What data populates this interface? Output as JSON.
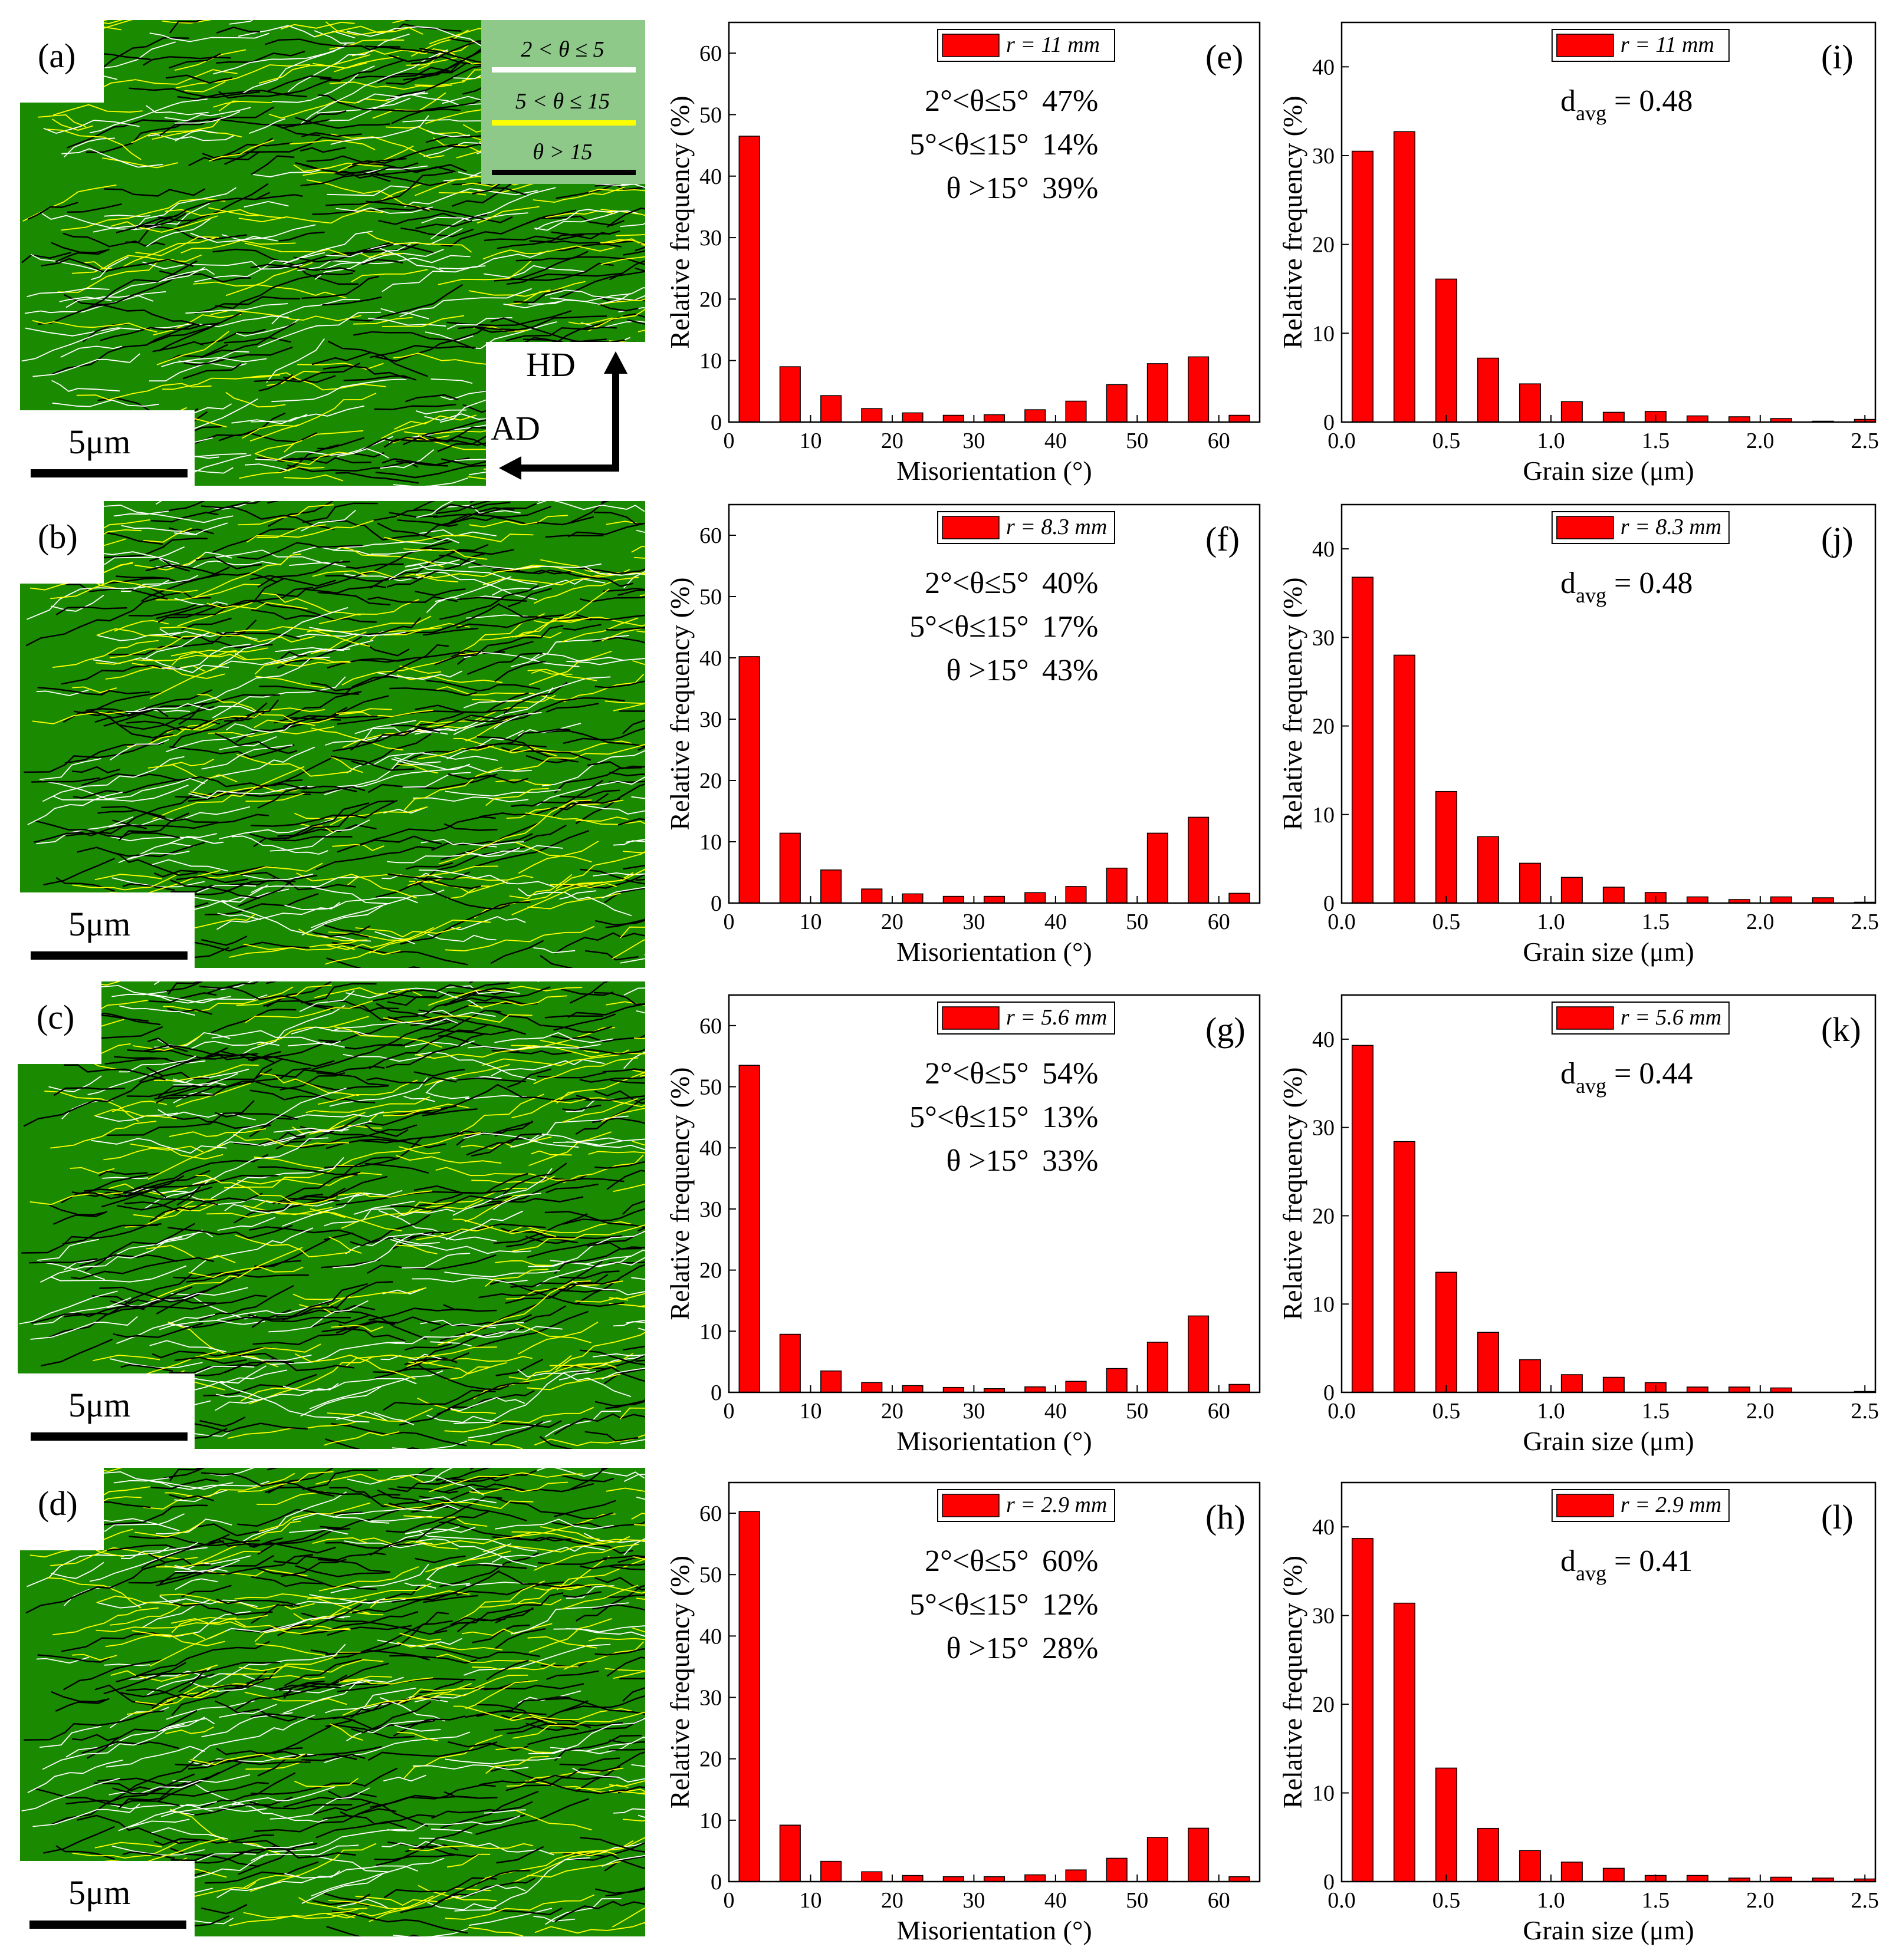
{
  "maps": [
    {
      "letter": "(a)",
      "scale": "5μm"
    },
    {
      "letter": "(b)",
      "scale": "5μm"
    },
    {
      "letter": "(c)",
      "scale": "5μm"
    },
    {
      "letter": "(d)",
      "scale": "5μm"
    }
  ],
  "boundary_legend": {
    "items": [
      {
        "label": "2 < θ ≤ 5",
        "color": "#ffffff"
      },
      {
        "label": "5 < θ ≤ 15",
        "color": "#ffff00"
      },
      {
        "label": "θ > 15",
        "color": "#000000"
      }
    ]
  },
  "directions": {
    "hd": "HD",
    "ad": "AD"
  },
  "colors": {
    "bar": "#ff0000",
    "map_bg": "#1a8a00",
    "legend_bg": "#8fc98a"
  },
  "chart_data": [
    {
      "id": "e",
      "type": "bar",
      "letter": "(e)",
      "legend": "r = 11 mm",
      "xlabel": "Misorientation (°)",
      "ylabel": "Relative frequency (%)",
      "xlim": [
        0,
        65
      ],
      "ylim": [
        0,
        65
      ],
      "xticks": [
        0,
        10,
        20,
        30,
        40,
        50,
        60
      ],
      "yticks": [
        0,
        10,
        20,
        30,
        40,
        50,
        60
      ],
      "x": [
        2.5,
        7.5,
        12.5,
        17.5,
        22.5,
        27.5,
        32.5,
        37.5,
        42.5,
        47.5,
        52.5,
        57.5,
        62.5
      ],
      "values": [
        46.5,
        9,
        4.3,
        2.2,
        1.5,
        1.1,
        1.2,
        2,
        3.4,
        6.1,
        9.5,
        10.6,
        1.1
      ],
      "stats": [
        {
          "range": "2°<θ≤5°",
          "pct": "47%"
        },
        {
          "range": "5°<θ≤15°",
          "pct": "14%"
        },
        {
          "range": "θ >15°",
          "pct": "39%"
        }
      ]
    },
    {
      "id": "i",
      "type": "bar",
      "letter": "(i)",
      "legend": "r = 11 mm",
      "xlabel": "Grain size (μm)",
      "ylabel": "Relative frequency (%)",
      "xlim": [
        0,
        2.55
      ],
      "ylim": [
        0,
        45
      ],
      "xticks": [
        "0.0",
        "0.5",
        "1.0",
        "1.5",
        "2.0",
        "2.5"
      ],
      "yticks": [
        0,
        10,
        20,
        30,
        40
      ],
      "x": [
        0.1,
        0.3,
        0.5,
        0.7,
        0.9,
        1.1,
        1.3,
        1.5,
        1.7,
        1.9,
        2.1,
        2.3,
        2.5
      ],
      "values": [
        30.5,
        32.7,
        16.1,
        7.2,
        4.3,
        2.3,
        1.1,
        1.2,
        0.7,
        0.6,
        0.4,
        0.1,
        0.3
      ],
      "davg_label": "d",
      "davg_sub": "avg",
      "davg_value": " = 0.48"
    },
    {
      "id": "f",
      "type": "bar",
      "letter": "(f)",
      "legend": "r = 8.3 mm",
      "xlabel": "Misorientation (°)",
      "ylabel": "Relative frequency (%)",
      "xlim": [
        0,
        65
      ],
      "ylim": [
        0,
        65
      ],
      "xticks": [
        0,
        10,
        20,
        30,
        40,
        50,
        60
      ],
      "yticks": [
        0,
        10,
        20,
        30,
        40,
        50,
        60
      ],
      "x": [
        2.5,
        7.5,
        12.5,
        17.5,
        22.5,
        27.5,
        32.5,
        37.5,
        42.5,
        47.5,
        52.5,
        57.5,
        62.5
      ],
      "values": [
        40.2,
        11.4,
        5.4,
        2.3,
        1.5,
        1.1,
        1.1,
        1.7,
        2.7,
        5.7,
        11.4,
        14,
        1.6
      ],
      "stats": [
        {
          "range": "2°<θ≤5°",
          "pct": "40%"
        },
        {
          "range": "5°<θ≤15°",
          "pct": "17%"
        },
        {
          "range": "θ >15°",
          "pct": "43%"
        }
      ]
    },
    {
      "id": "j",
      "type": "bar",
      "letter": "(j)",
      "legend": "r = 8.3 mm",
      "xlabel": "Grain size (μm)",
      "ylabel": "Relative frequency (%)",
      "xlim": [
        0,
        2.55
      ],
      "ylim": [
        0,
        45
      ],
      "xticks": [
        "0.0",
        "0.5",
        "1.0",
        "1.5",
        "2.0",
        "2.5"
      ],
      "yticks": [
        0,
        10,
        20,
        30,
        40
      ],
      "x": [
        0.1,
        0.3,
        0.5,
        0.7,
        0.9,
        1.1,
        1.3,
        1.5,
        1.7,
        1.9,
        2.1,
        2.3,
        2.5
      ],
      "values": [
        36.8,
        28,
        12.6,
        7.5,
        4.5,
        2.9,
        1.8,
        1.2,
        0.7,
        0.4,
        0.7,
        0.6,
        0.1
      ],
      "davg_label": "d",
      "davg_sub": "avg",
      "davg_value": " = 0.48"
    },
    {
      "id": "g",
      "type": "bar",
      "letter": "(g)",
      "legend": "r = 5.6 mm",
      "xlabel": "Misorientation (°)",
      "ylabel": "Relative frequency (%)",
      "xlim": [
        0,
        65
      ],
      "ylim": [
        0,
        65
      ],
      "xticks": [
        0,
        10,
        20,
        30,
        40,
        50,
        60
      ],
      "yticks": [
        0,
        10,
        20,
        30,
        40,
        50,
        60
      ],
      "x": [
        2.5,
        7.5,
        12.5,
        17.5,
        22.5,
        27.5,
        32.5,
        37.5,
        42.5,
        47.5,
        52.5,
        57.5,
        62.5
      ],
      "values": [
        53.5,
        9.5,
        3.5,
        1.6,
        1.1,
        0.8,
        0.6,
        0.9,
        1.8,
        3.9,
        8.2,
        12.5,
        1.3
      ],
      "stats": [
        {
          "range": "2°<θ≤5°",
          "pct": "54%"
        },
        {
          "range": "5°<θ≤15°",
          "pct": "13%"
        },
        {
          "range": "θ >15°",
          "pct": "33%"
        }
      ]
    },
    {
      "id": "k",
      "type": "bar",
      "letter": "(k)",
      "legend": "r = 5.6 mm",
      "xlabel": "Grain size (μm)",
      "ylabel": "Relative frequency (%)",
      "xlim": [
        0,
        2.55
      ],
      "ylim": [
        0,
        45
      ],
      "xticks": [
        "0.0",
        "0.5",
        "1.0",
        "1.5",
        "2.0",
        "2.5"
      ],
      "yticks": [
        0,
        10,
        20,
        30,
        40
      ],
      "x": [
        0.1,
        0.3,
        0.5,
        0.7,
        0.9,
        1.1,
        1.3,
        1.5,
        1.7,
        1.9,
        2.1,
        2.3,
        2.5
      ],
      "values": [
        39.3,
        28.4,
        13.6,
        6.8,
        3.7,
        2,
        1.7,
        1.1,
        0.6,
        0.6,
        0.5,
        0,
        0.1
      ],
      "davg_label": "d",
      "davg_sub": "avg",
      "davg_value": " = 0.44"
    },
    {
      "id": "h",
      "type": "bar",
      "letter": "(h)",
      "legend": "r = 2.9 mm",
      "xlabel": "Misorientation (°)",
      "ylabel": "Relative frequency (%)",
      "xlim": [
        0,
        65
      ],
      "ylim": [
        0,
        65
      ],
      "xticks": [
        0,
        10,
        20,
        30,
        40,
        50,
        60
      ],
      "yticks": [
        0,
        10,
        20,
        30,
        40,
        50,
        60
      ],
      "x": [
        2.5,
        7.5,
        12.5,
        17.5,
        22.5,
        27.5,
        32.5,
        37.5,
        42.5,
        47.5,
        52.5,
        57.5,
        62.5
      ],
      "values": [
        60.3,
        9.2,
        3.3,
        1.6,
        1,
        0.8,
        0.8,
        1.1,
        1.9,
        3.8,
        7.2,
        8.7,
        0.8
      ],
      "stats": [
        {
          "range": "2°<θ≤5°",
          "pct": "60%"
        },
        {
          "range": "5°<θ≤15°",
          "pct": "12%"
        },
        {
          "range": "θ >15°",
          "pct": "28%"
        }
      ]
    },
    {
      "id": "l",
      "type": "bar",
      "letter": "(l)",
      "legend": "r = 2.9 mm",
      "xlabel": "Grain size (μm)",
      "ylabel": "Relative frequency (%)",
      "xlim": [
        0,
        2.55
      ],
      "ylim": [
        0,
        45
      ],
      "xticks": [
        "0.0",
        "0.5",
        "1.0",
        "1.5",
        "2.0",
        "2.5"
      ],
      "yticks": [
        0,
        10,
        20,
        30,
        40
      ],
      "x": [
        0.1,
        0.3,
        0.5,
        0.7,
        0.9,
        1.1,
        1.3,
        1.5,
        1.7,
        1.9,
        2.1,
        2.3,
        2.5
      ],
      "values": [
        38.7,
        31.4,
        12.8,
        6,
        3.5,
        2.2,
        1.5,
        0.7,
        0.7,
        0.4,
        0.5,
        0.4,
        0.3
      ],
      "davg_label": "d",
      "davg_sub": "avg",
      "davg_value": " = 0.41"
    }
  ]
}
